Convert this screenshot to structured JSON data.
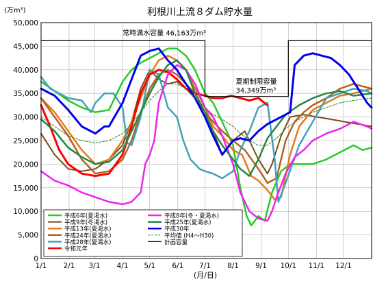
{
  "chart_data": {
    "type": "line",
    "title": "利根川上流８ダム貯水量",
    "ylabel": "(万m³)",
    "xlabel": "(月/日)",
    "ylim": [
      0,
      50000
    ],
    "yticks": [
      "0",
      "5,000",
      "10,000",
      "15,000",
      "20,000",
      "25,000",
      "30,000",
      "35,000",
      "40,000",
      "45,000",
      "50,000"
    ],
    "xlim": [
      0,
      365
    ],
    "xticks": [
      {
        "day": 0,
        "label": "1/1"
      },
      {
        "day": 31,
        "label": "2/1"
      },
      {
        "day": 59,
        "label": "3/1"
      },
      {
        "day": 90,
        "label": "4/1"
      },
      {
        "day": 120,
        "label": "5/1"
      },
      {
        "day": 151,
        "label": "6/1"
      },
      {
        "day": 181,
        "label": "7/1"
      },
      {
        "day": 212,
        "label": "8/1"
      },
      {
        "day": 243,
        "label": "9/1"
      },
      {
        "day": 273,
        "label": "10/1"
      },
      {
        "day": 304,
        "label": "11/1"
      },
      {
        "day": 334,
        "label": "12/1"
      }
    ],
    "annotations": [
      {
        "text": "常時満水容量 46,163万m³",
        "x": 90,
        "y": 47300
      },
      {
        "text": "夏期制限容量",
        "x": 215,
        "y": 37000
      },
      {
        "text": "34,349万m³",
        "x": 215,
        "y": 35200
      }
    ],
    "series": [
      {
        "name": "平成6年(夏渇水)",
        "color": "#22cc22",
        "width": 2.5,
        "x": [
          0,
          15,
          30,
          45,
          60,
          75,
          90,
          100,
          110,
          120,
          130,
          140,
          150,
          160,
          170,
          181,
          190,
          200,
          212,
          220,
          227,
          232,
          240,
          247,
          255,
          265,
          275,
          285,
          300,
          315,
          330,
          345,
          355,
          365
        ],
        "y": [
          37500,
          35500,
          33500,
          32000,
          31000,
          31500,
          37500,
          40000,
          41500,
          42500,
          43500,
          44500,
          44500,
          43000,
          40000,
          35000,
          33000,
          29000,
          24000,
          15000,
          9000,
          7000,
          9000,
          8000,
          14000,
          18500,
          20000,
          20000,
          20000,
          21000,
          22500,
          24000,
          23000,
          23500
        ]
      },
      {
        "name": "平成9年(冬渇水)",
        "color": "#7a4a14",
        "width": 2,
        "x": [
          0,
          15,
          30,
          45,
          60,
          75,
          90,
          100,
          110,
          120,
          130,
          140,
          150,
          160,
          170,
          181,
          190,
          200,
          212,
          225,
          240,
          250,
          255,
          265,
          275,
          290,
          305,
          320,
          335,
          350,
          365
        ],
        "y": [
          26500,
          22000,
          19000,
          18500,
          19000,
          21000,
          24000,
          29000,
          36000,
          40000,
          38000,
          37000,
          37500,
          36000,
          34000,
          31000,
          27000,
          22000,
          25000,
          27000,
          21000,
          18000,
          20000,
          26000,
          30000,
          30500,
          30000,
          29500,
          29000,
          28500,
          28000
        ]
      },
      {
        "name": "平成13年(夏渇水)",
        "color": "#e87818",
        "width": 2.5,
        "x": [
          0,
          15,
          30,
          45,
          60,
          75,
          90,
          100,
          110,
          120,
          130,
          140,
          150,
          160,
          170,
          181,
          190,
          200,
          212,
          222,
          232,
          240,
          250,
          258,
          265,
          275,
          285,
          300,
          315,
          330,
          345,
          365
        ],
        "y": [
          34000,
          31000,
          27000,
          23000,
          20000,
          21000,
          25000,
          29000,
          34000,
          39000,
          42000,
          43000,
          42000,
          40000,
          36000,
          32000,
          28000,
          26000,
          23000,
          22000,
          17500,
          16500,
          14500,
          12500,
          13000,
          22000,
          28000,
          31500,
          33000,
          34500,
          35000,
          36000
        ]
      },
      {
        "name": "平成24年(夏渇水)",
        "color": "#b7611e",
        "width": 2.5,
        "x": [
          0,
          15,
          30,
          45,
          60,
          75,
          90,
          100,
          110,
          120,
          130,
          140,
          150,
          160,
          170,
          181,
          190,
          200,
          212,
          225,
          240,
          250,
          260,
          270,
          280,
          290,
          300,
          315,
          330,
          345,
          365
        ],
        "y": [
          34000,
          30000,
          26000,
          21000,
          18000,
          18500,
          21000,
          25000,
          31000,
          36000,
          39000,
          40000,
          39000,
          37000,
          35000,
          31000,
          29000,
          27000,
          25000,
          23000,
          19000,
          16000,
          17000,
          25000,
          29000,
          31000,
          32500,
          34000,
          36000,
          37000,
          36000
        ]
      },
      {
        "name": "平成28年(夏渇水)",
        "color": "#44a0b8",
        "width": 2.5,
        "x": [
          0,
          10,
          20,
          30,
          45,
          55,
          60,
          70,
          80,
          90,
          95,
          100,
          110,
          120,
          130,
          140,
          150,
          157,
          165,
          175,
          181,
          190,
          200,
          212,
          220,
          230,
          240,
          250,
          258,
          262,
          270,
          285,
          300,
          315,
          330,
          345,
          360,
          365
        ],
        "y": [
          38500,
          36000,
          35000,
          34000,
          33500,
          31000,
          33000,
          35000,
          35000,
          32000,
          24500,
          24000,
          30000,
          40000,
          39000,
          32000,
          30000,
          25000,
          21000,
          19000,
          18500,
          18000,
          17000,
          18500,
          23000,
          27000,
          32000,
          33000,
          21000,
          12000,
          16000,
          24000,
          29000,
          34000,
          35000,
          36000,
          35500,
          35000
        ]
      },
      {
        "name": "令和元年",
        "color": "#ff0000",
        "width": 3,
        "x": [
          0,
          10,
          20,
          30,
          45,
          60,
          75,
          90,
          100,
          110,
          120,
          130,
          140,
          150,
          160,
          170,
          181,
          190,
          200,
          210,
          220,
          230,
          240,
          250
        ],
        "y": [
          32500,
          28000,
          23000,
          20000,
          18000,
          17500,
          18000,
          22000,
          28000,
          35000,
          39000,
          40000,
          39500,
          38000,
          36000,
          35000,
          34500,
          34000,
          34000,
          34500,
          34000,
          33500,
          34000,
          32500
        ]
      },
      {
        "name": "平成8年(冬・夏渇水)",
        "color": "#ee22ee",
        "width": 2.5,
        "x": [
          0,
          15,
          30,
          45,
          60,
          75,
          90,
          100,
          110,
          115,
          120,
          125,
          130,
          140,
          150,
          160,
          170,
          181,
          190,
          200,
          212,
          220,
          230,
          240,
          250,
          255,
          260,
          270,
          280,
          290,
          300,
          315,
          330,
          345,
          360,
          365
        ],
        "y": [
          18500,
          16500,
          15500,
          14000,
          13000,
          12000,
          11500,
          12000,
          14000,
          20000,
          22000,
          25000,
          33000,
          39000,
          41000,
          40000,
          37000,
          32000,
          30000,
          26000,
          20000,
          14000,
          10000,
          8500,
          8000,
          10000,
          13000,
          18000,
          21500,
          23000,
          25000,
          26500,
          27500,
          29000,
          28000,
          27500
        ]
      },
      {
        "name": "平成25年(夏渇水)",
        "color": "#228844",
        "width": 2.5,
        "x": [
          0,
          15,
          30,
          45,
          60,
          75,
          90,
          100,
          110,
          120,
          130,
          140,
          150,
          160,
          170,
          181,
          190,
          200,
          212,
          220,
          230,
          240,
          250,
          260,
          270,
          285,
          300,
          315,
          330,
          345,
          365
        ],
        "y": [
          29500,
          27000,
          23500,
          21500,
          20000,
          20500,
          23000,
          27000,
          31000,
          35000,
          38500,
          41000,
          42000,
          40000,
          35000,
          31000,
          27000,
          24000,
          21000,
          19000,
          17500,
          21000,
          25500,
          28000,
          30500,
          32500,
          34000,
          35000,
          35500,
          34500,
          35000
        ]
      },
      {
        "name": "平成30年",
        "color": "#0000ee",
        "width": 3,
        "x": [
          0,
          15,
          30,
          45,
          60,
          70,
          75,
          90,
          100,
          110,
          120,
          130,
          140,
          150,
          160,
          170,
          181,
          190,
          200,
          212,
          220,
          230,
          240,
          250,
          260,
          270,
          275,
          280,
          290,
          300,
          310,
          320,
          330,
          340,
          350,
          360,
          365
        ],
        "y": [
          36000,
          34500,
          31500,
          28000,
          26500,
          28000,
          28000,
          33000,
          38000,
          43000,
          44000,
          44500,
          42000,
          40000,
          37000,
          34000,
          30000,
          26000,
          22000,
          25000,
          25500,
          25000,
          27000,
          28500,
          29500,
          30500,
          31000,
          41000,
          43000,
          43500,
          43000,
          42500,
          41000,
          39000,
          36000,
          33000,
          32000
        ]
      },
      {
        "name": "平均値 (H4～H30)",
        "color": "#228822",
        "width": 1,
        "dash": true,
        "x": [
          0,
          15,
          30,
          45,
          60,
          75,
          90,
          100,
          110,
          120,
          130,
          140,
          150,
          160,
          170,
          181,
          190,
          200,
          212,
          220,
          230,
          240,
          250,
          260,
          270,
          285,
          300,
          315,
          330,
          345,
          365
        ],
        "y": [
          30000,
          28000,
          26000,
          25000,
          24500,
          25000,
          26500,
          28500,
          31000,
          33500,
          35500,
          37000,
          37000,
          36000,
          34000,
          32000,
          30500,
          29500,
          28000,
          26500,
          25000,
          24000,
          24000,
          25500,
          27500,
          29500,
          31000,
          32000,
          33000,
          33500,
          34000
        ]
      },
      {
        "name": "計画容量",
        "color": "#000000",
        "width": 1.2,
        "x": [
          0,
          181,
          181,
          273,
          273,
          365
        ],
        "y": [
          46163,
          46163,
          34349,
          34349,
          46163,
          46163
        ]
      }
    ]
  }
}
